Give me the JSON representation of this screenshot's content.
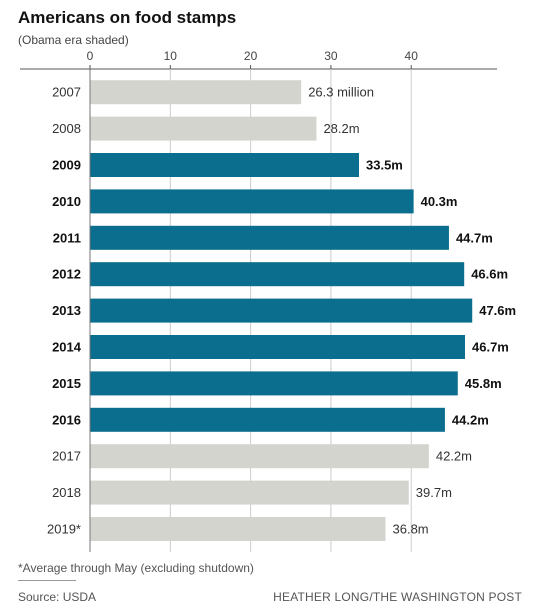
{
  "header": {
    "title": "Americans on food stamps",
    "subtitle": "(Obama era shaded)"
  },
  "footer": {
    "footnote": "*Average through May (excluding shutdown)",
    "source": "Source: USDA",
    "credit": "HEATHER LONG/THE WASHINGTON POST"
  },
  "colors": {
    "obama": "#0b6e8e",
    "other": "#d4d4cf",
    "grid": "#cccccc"
  },
  "chart_data": {
    "type": "bar",
    "orientation": "horizontal",
    "title": "Americans on food stamps",
    "subtitle": "(Obama era shaded)",
    "xlim": [
      0,
      51
    ],
    "xticks": [
      0,
      10,
      20,
      30,
      40
    ],
    "categories": [
      "2007",
      "2008",
      "2009",
      "2010",
      "2011",
      "2012",
      "2013",
      "2014",
      "2015",
      "2016",
      "2017",
      "2018",
      "2019*"
    ],
    "values": [
      26.3,
      28.2,
      33.5,
      40.3,
      44.7,
      46.6,
      47.6,
      46.7,
      45.8,
      44.2,
      42.2,
      39.7,
      36.8
    ],
    "labels": [
      "26.3 million",
      "28.2m",
      "33.5m",
      "40.3m",
      "44.7m",
      "46.6m",
      "47.6m",
      "46.7m",
      "45.8m",
      "44.2m",
      "42.2m",
      "39.7m",
      "36.8m"
    ],
    "highlighted": [
      false,
      false,
      true,
      true,
      true,
      true,
      true,
      true,
      true,
      true,
      false,
      false,
      false
    ],
    "grid": true
  }
}
